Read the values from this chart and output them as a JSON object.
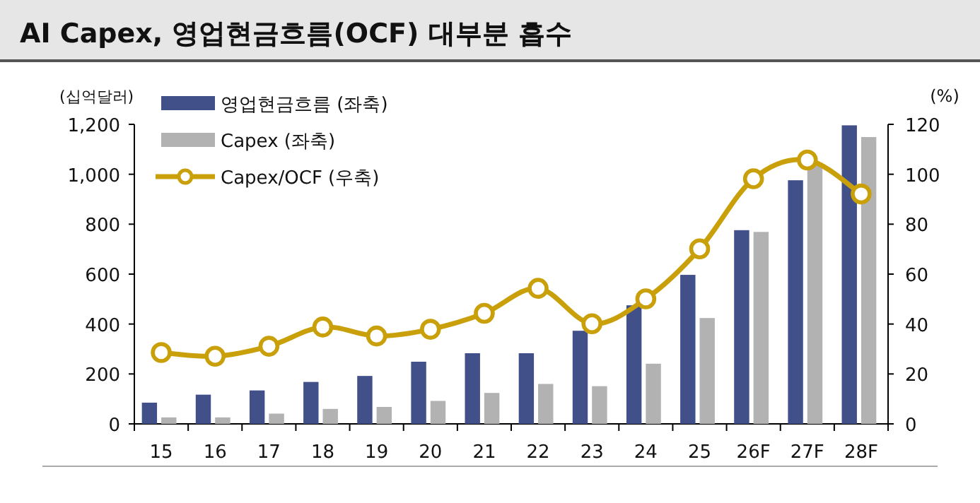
{
  "chart_data": {
    "type": "bar",
    "title": "AI Capex, 영업현금흐름(OCF) 대부분 흡수",
    "ylabel": "(십억달러)",
    "y2label": "(%)",
    "categories": [
      "15",
      "16",
      "17",
      "18",
      "19",
      "20",
      "21",
      "22",
      "23",
      "24",
      "25",
      "26F",
      "27F",
      "28F"
    ],
    "series": [
      {
        "name": "영업현금흐름 (좌축)",
        "color": "#42508a",
        "values": [
          85,
          117,
          134,
          168,
          192,
          249,
          283,
          283,
          373,
          475,
          597,
          776,
          976,
          1196
        ]
      },
      {
        "name": "Capex (좌축)",
        "color": "#b2b2b2",
        "values": [
          26,
          26,
          41,
          60,
          68,
          92,
          124,
          160,
          151,
          241,
          424,
          769,
          1046,
          1149
        ]
      },
      {
        "name": "Capex/OCF (우축)",
        "type": "line",
        "axis": "y2",
        "marker": "circle",
        "color": "#c9a00a",
        "values": [
          28.6,
          27.1,
          31.1,
          38.8,
          35.2,
          37.9,
          44.3,
          54.3,
          40.1,
          50.1,
          70.1,
          98.2,
          105.7,
          92.1
        ]
      }
    ],
    "ylim": [
      0,
      1200
    ],
    "yticks": [
      {
        "value": 0,
        "label": "0"
      },
      {
        "value": 200,
        "label": "200"
      },
      {
        "value": 400,
        "label": "400"
      },
      {
        "value": 600,
        "label": "600"
      },
      {
        "value": 800,
        "label": "800"
      },
      {
        "value": 1000,
        "label": "1,000"
      },
      {
        "value": 1200,
        "label": "1,200"
      }
    ],
    "y2lim": [
      0,
      120
    ],
    "y2ticks": [
      0,
      20,
      40,
      60,
      80,
      100,
      120
    ],
    "grid": false,
    "legend": "top left"
  }
}
